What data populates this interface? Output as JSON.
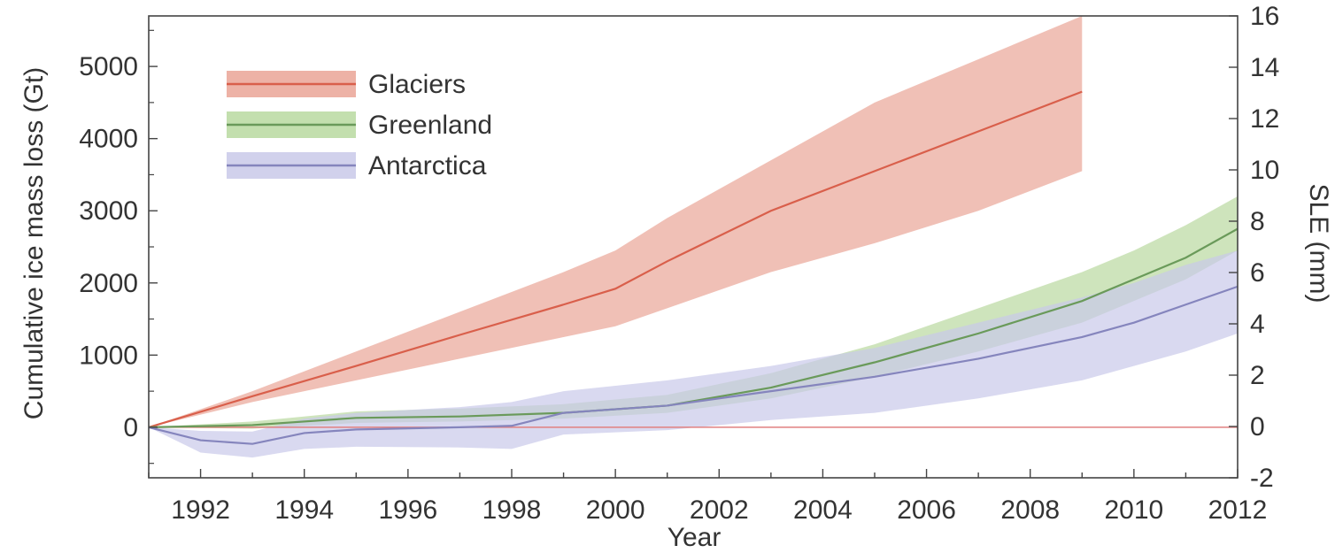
{
  "chart_data": {
    "type": "area",
    "title": "",
    "xlabel": "Year",
    "ylabel": "Cumulative ice mass loss (Gt)",
    "y2label": "SLE (mm)",
    "xlim": [
      1991,
      2012
    ],
    "ylim": [
      -700,
      5700
    ],
    "y2lim": [
      -2,
      16
    ],
    "x_ticks": [
      "1992",
      "1994",
      "1996",
      "1998",
      "2000",
      "2002",
      "2004",
      "2006",
      "2008",
      "2010",
      "2012"
    ],
    "y_ticks": [
      "0",
      "1000",
      "2000",
      "3000",
      "4000",
      "5000"
    ],
    "y2_ticks": [
      "-2",
      "0",
      "2",
      "4",
      "6",
      "8",
      "10",
      "12",
      "14",
      "16"
    ],
    "legend_position": "top-left",
    "grid": false,
    "series": [
      {
        "name": "Glaciers",
        "color": "#d95f4b",
        "band_color": "#eaa597",
        "x": [
          1991,
          1993,
          1995,
          1997,
          1999,
          2000,
          2001,
          2003,
          2005,
          2007,
          2009
        ],
        "mean": [
          0,
          430,
          850,
          1280,
          1700,
          1920,
          2300,
          3000,
          3550,
          4100,
          4650
        ],
        "lower": [
          0,
          350,
          650,
          950,
          1250,
          1400,
          1650,
          2150,
          2550,
          3000,
          3550
        ],
        "upper": [
          0,
          500,
          1050,
          1600,
          2150,
          2450,
          2900,
          3700,
          4500,
          5100,
          5700
        ]
      },
      {
        "name": "Greenland",
        "color": "#6a9a5a",
        "band_color": "#b9d9a0",
        "x": [
          1991,
          1993,
          1995,
          1997,
          1999,
          2001,
          2003,
          2005,
          2007,
          2009,
          2010,
          2011,
          2012
        ],
        "mean": [
          0,
          30,
          130,
          150,
          200,
          300,
          550,
          900,
          1300,
          1750,
          2050,
          2350,
          2750
        ],
        "lower": [
          0,
          -20,
          60,
          80,
          120,
          200,
          400,
          700,
          1050,
          1450,
          1750,
          2050,
          2450
        ],
        "upper": [
          0,
          80,
          220,
          260,
          320,
          450,
          750,
          1150,
          1650,
          2150,
          2450,
          2800,
          3200
        ]
      },
      {
        "name": "Antarctica",
        "color": "#8585bd",
        "band_color": "#c9c9e9",
        "x": [
          1991,
          1992,
          1993,
          1994,
          1995,
          1997,
          1998,
          1999,
          2001,
          2003,
          2005,
          2007,
          2009,
          2010,
          2011,
          2012
        ],
        "mean": [
          0,
          -180,
          -230,
          -80,
          -30,
          0,
          20,
          200,
          300,
          500,
          700,
          950,
          1250,
          1450,
          1700,
          1950
        ],
        "lower": [
          0,
          -350,
          -420,
          -300,
          -270,
          -280,
          -300,
          -100,
          -40,
          100,
          200,
          400,
          650,
          850,
          1050,
          1300
        ],
        "upper": [
          0,
          -50,
          -60,
          120,
          200,
          280,
          350,
          500,
          650,
          850,
          1100,
          1450,
          1800,
          2000,
          2250,
          2450
        ]
      }
    ]
  }
}
